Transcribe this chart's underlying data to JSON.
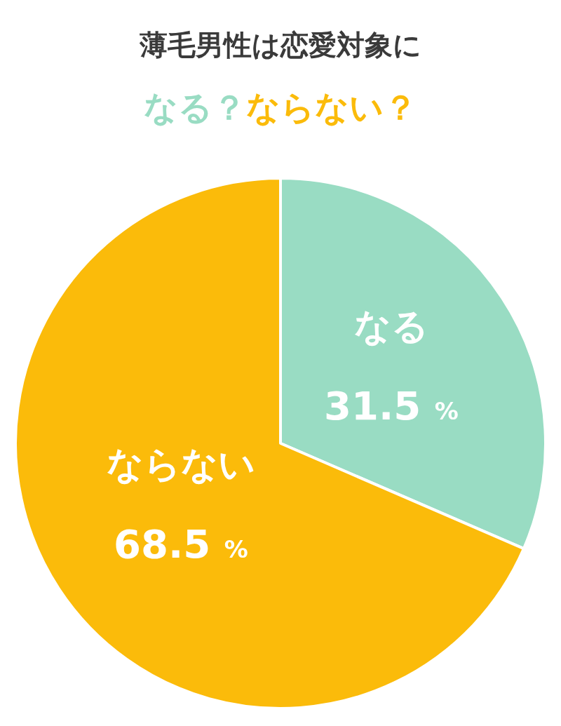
{
  "chart_data": {
    "type": "pie",
    "title": "薄毛男性は恋愛対象に",
    "annotations": [
      "なる？",
      "ならない？"
    ],
    "categories": [
      "なる",
      "ならない"
    ],
    "values": [
      31.5,
      68.5
    ],
    "colors": [
      "#99dcc3",
      "#fbbb0a"
    ],
    "value_labels": [
      "31.5 %",
      "68.5 %"
    ]
  }
}
